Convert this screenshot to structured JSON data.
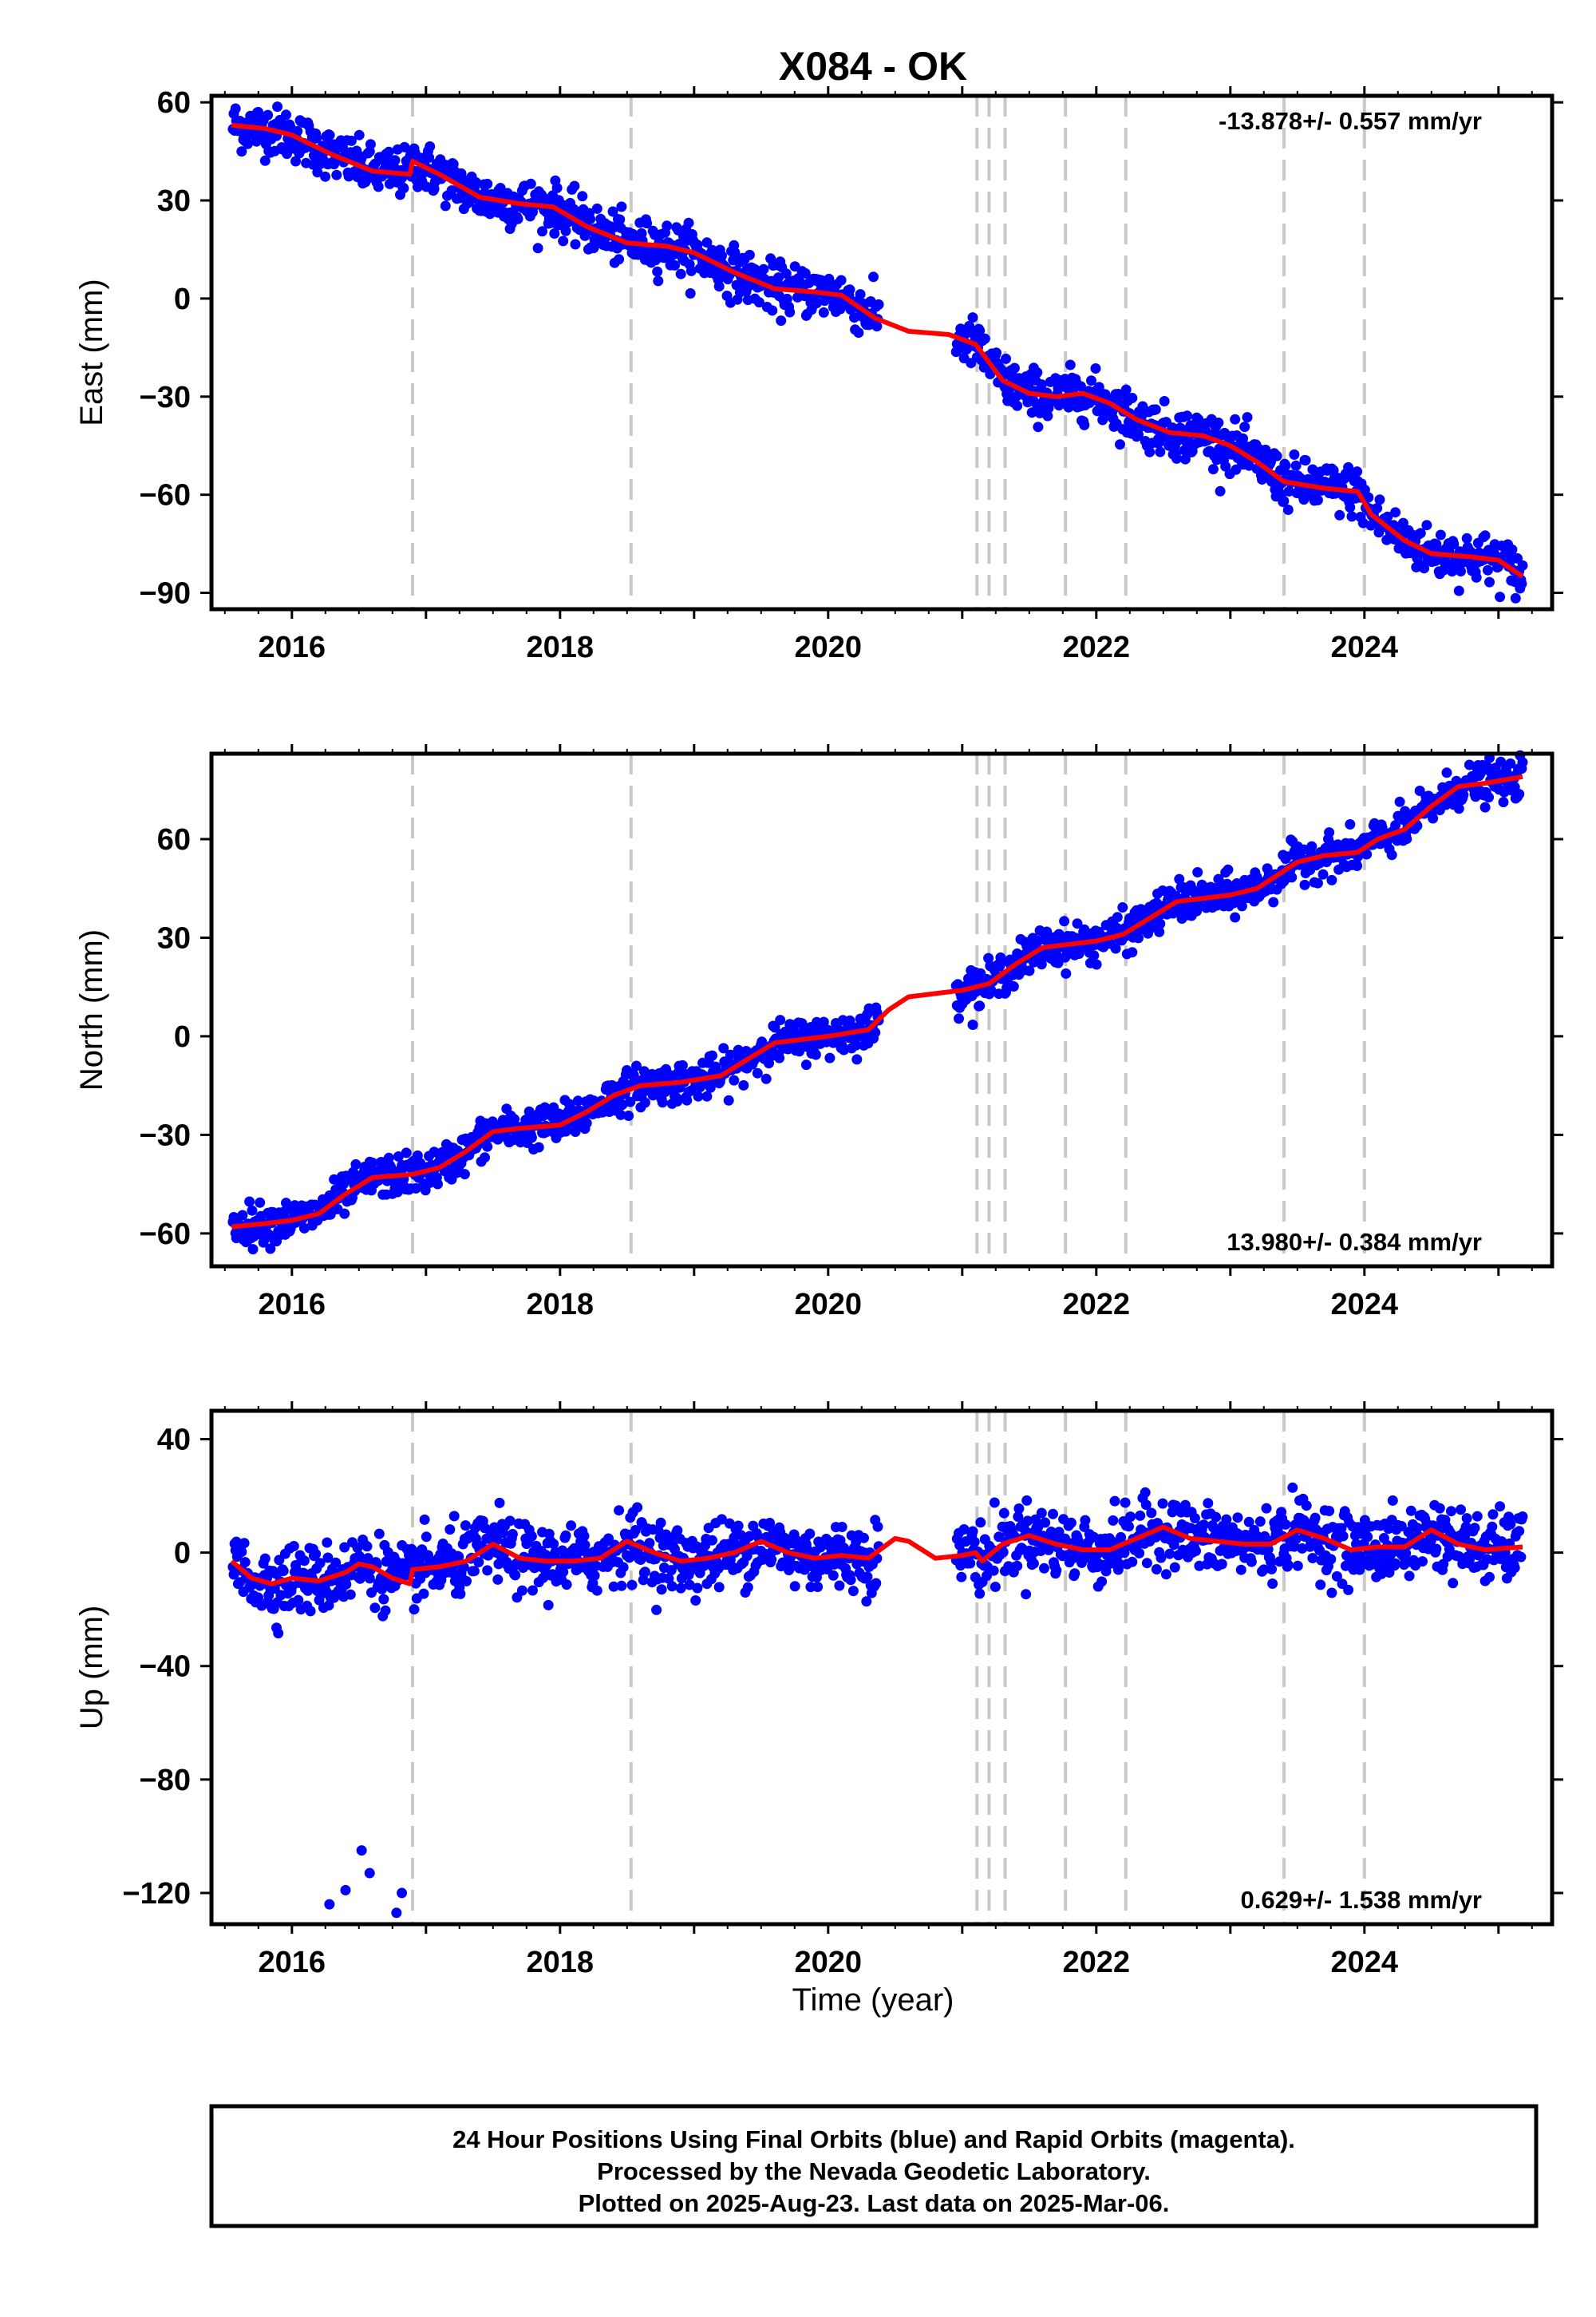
{
  "figure": {
    "title": "X084 - OK",
    "xlabel": "Time (year)",
    "footer": [
      "24 Hour Positions Using Final Orbits (blue) and Rapid Orbits (magenta).",
      "Processed by the Nevada Geodetic Laboratory.",
      "Plotted on 2025-Aug-23. Last data on 2025-Mar-06."
    ],
    "colors": {
      "points": "#0000ff",
      "model": "#ff0000",
      "events": "#c8c8c8",
      "frame": "#000000"
    }
  },
  "chart_data": [
    {
      "type": "scatter",
      "panel": "east",
      "ylabel": "East (mm)",
      "xlim": [
        2015.4,
        2025.4
      ],
      "ylim": [
        -95,
        62
      ],
      "yticks": [
        60,
        30,
        0,
        -30,
        -60,
        -90
      ],
      "xticks": [
        2016,
        2018,
        2020,
        2022,
        2024
      ],
      "rate": "-13.878+/- 0.557 mm/yr",
      "rate_position": "top-right",
      "event_lines": [
        2016.9,
        2018.53,
        2021.11,
        2021.2,
        2021.32,
        2021.77,
        2022.22,
        2023.4,
        2024.0
      ],
      "model_x": [
        2015.55,
        2015.8,
        2016.0,
        2016.3,
        2016.6,
        2016.88,
        2016.9,
        2017.1,
        2017.4,
        2017.7,
        2017.95,
        2018.2,
        2018.5,
        2018.8,
        2019.0,
        2019.3,
        2019.6,
        2019.9,
        2020.1,
        2020.35,
        2020.6,
        2020.9,
        2021.1,
        2021.3,
        2021.5,
        2021.7,
        2021.9,
        2022.1,
        2022.3,
        2022.55,
        2022.8,
        2023.0,
        2023.2,
        2023.4,
        2023.7,
        2023.95,
        2024.05,
        2024.3,
        2024.5,
        2024.8,
        2025.0,
        2025.18
      ],
      "model_y": [
        53,
        52,
        50,
        44,
        39,
        38,
        42,
        38,
        31,
        29,
        28,
        22,
        17,
        16,
        14,
        8,
        3,
        2,
        1,
        -6,
        -10,
        -11,
        -14,
        -25,
        -29,
        -30,
        -29,
        -32,
        -37,
        -41,
        -42,
        -45,
        -50,
        -56,
        -58,
        -59,
        -66,
        -74,
        -78,
        -79,
        -80,
        -85
      ],
      "points_summary": {
        "series": "daily positions",
        "scatter_half_width_mm": 5
      }
    },
    {
      "type": "scatter",
      "panel": "north",
      "ylabel": "North (mm)",
      "xlim": [
        2015.4,
        2025.4
      ],
      "ylim": [
        -70,
        86
      ],
      "yticks": [
        60,
        30,
        0,
        -30,
        -60
      ],
      "xticks": [
        2016,
        2018,
        2020,
        2022,
        2024
      ],
      "rate": "13.980+/- 0.384 mm/yr",
      "rate_position": "bottom-right",
      "event_lines": [
        2016.9,
        2018.53,
        2021.11,
        2021.2,
        2021.32,
        2021.77,
        2022.22,
        2023.4,
        2024.0
      ],
      "model_x": [
        2015.55,
        2015.8,
        2016.0,
        2016.2,
        2016.4,
        2016.6,
        2016.9,
        2017.1,
        2017.3,
        2017.5,
        2017.7,
        2018.0,
        2018.2,
        2018.4,
        2018.6,
        2018.9,
        2019.2,
        2019.4,
        2019.6,
        2019.8,
        2020.0,
        2020.3,
        2020.45,
        2020.6,
        2020.8,
        2021.0,
        2021.2,
        2021.4,
        2021.6,
        2021.8,
        2022.0,
        2022.2,
        2022.4,
        2022.6,
        2022.8,
        2023.0,
        2023.2,
        2023.5,
        2023.7,
        2023.95,
        2024.1,
        2024.3,
        2024.5,
        2024.7,
        2024.9,
        2025.18
      ],
      "model_y": [
        -58,
        -57,
        -56,
        -54,
        -48,
        -43,
        -42,
        -40,
        -35,
        -29,
        -28,
        -27,
        -23,
        -18,
        -15,
        -14,
        -12,
        -7,
        -2,
        -1,
        0,
        2,
        8,
        12,
        13,
        14,
        16,
        22,
        27,
        28,
        29,
        31,
        36,
        41,
        42,
        43,
        45,
        53,
        55,
        56,
        60,
        63,
        70,
        76,
        77,
        79
      ],
      "points_summary": {
        "series": "daily positions",
        "scatter_half_width_mm": 4
      }
    },
    {
      "type": "scatter",
      "panel": "up",
      "ylabel": "Up (mm)",
      "xlim": [
        2015.4,
        2025.4
      ],
      "ylim": [
        -131,
        50
      ],
      "yticks": [
        40,
        0,
        -40,
        -80,
        -120
      ],
      "xticks": [
        2016,
        2018,
        2020,
        2022,
        2024
      ],
      "rate": "0.629+/- 1.538 mm/yr",
      "rate_position": "bottom-right",
      "event_lines": [
        2016.9,
        2018.53,
        2021.11,
        2021.2,
        2021.32,
        2021.77,
        2022.22,
        2023.4,
        2024.0
      ],
      "model_x": [
        2015.55,
        2015.7,
        2015.85,
        2016.0,
        2016.2,
        2016.4,
        2016.5,
        2016.6,
        2016.75,
        2016.88,
        2016.9,
        2017.1,
        2017.3,
        2017.5,
        2017.7,
        2017.9,
        2018.1,
        2018.3,
        2018.5,
        2018.7,
        2018.9,
        2019.1,
        2019.3,
        2019.5,
        2019.7,
        2019.9,
        2020.1,
        2020.3,
        2020.5,
        2020.6,
        2020.8,
        2021.0,
        2021.1,
        2021.15,
        2021.3,
        2021.5,
        2021.7,
        2021.9,
        2022.1,
        2022.3,
        2022.5,
        2022.7,
        2022.9,
        2023.1,
        2023.3,
        2023.5,
        2023.7,
        2023.9,
        2024.1,
        2024.3,
        2024.5,
        2024.7,
        2024.9,
        2025.18
      ],
      "model_y": [
        -3,
        -9,
        -11,
        -9,
        -10,
        -7,
        -4,
        -5,
        -9,
        -11,
        -6,
        -5,
        -3,
        3,
        -2,
        -3,
        -3,
        -2,
        4,
        0,
        -3,
        -2,
        0,
        4,
        0,
        -2,
        -1,
        -2,
        5,
        4,
        -2,
        -1,
        0,
        -3,
        3,
        6,
        3,
        1,
        1,
        5,
        9,
        5,
        4,
        3,
        3,
        8,
        5,
        1,
        2,
        2,
        8,
        3,
        1,
        2
      ],
      "outliers": [
        [
          2016.28,
          -124
        ],
        [
          2016.4,
          -119
        ],
        [
          2016.52,
          -105
        ],
        [
          2016.58,
          -113
        ],
        [
          2016.78,
          -127
        ],
        [
          2016.82,
          -120
        ]
      ],
      "points_summary": {
        "series": "daily positions",
        "scatter_half_width_mm": 8
      }
    }
  ]
}
